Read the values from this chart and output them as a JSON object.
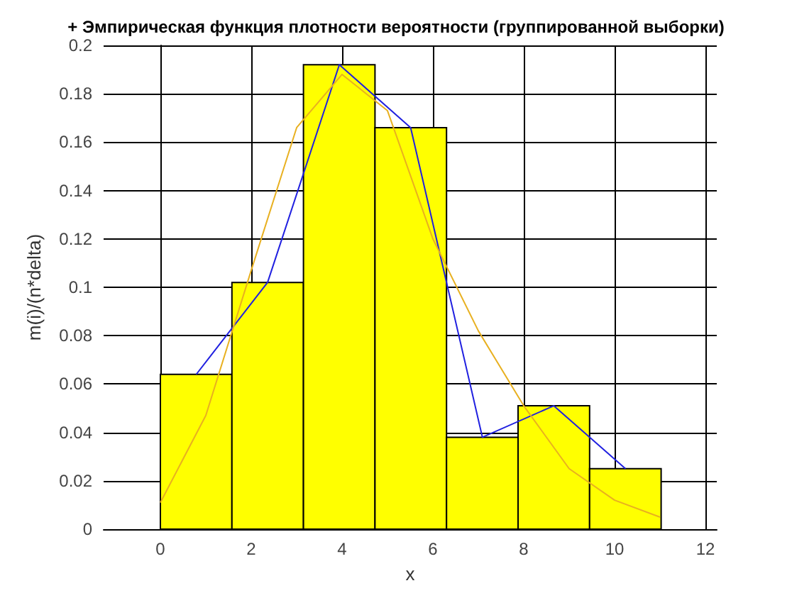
{
  "chart_data": {
    "type": "histogram",
    "title": "+ Эмпирическая функция плотности вероятности (группированной выборки)",
    "xlabel": "x",
    "ylabel": "m(i)/(n*delta)",
    "bins": [
      0,
      1.575,
      3.15,
      4.725,
      6.3,
      7.875,
      9.45,
      11.025
    ],
    "values": [
      0.064,
      0.102,
      0.192,
      0.166,
      0.038,
      0.051,
      0.025
    ],
    "color": "#ffff00",
    "series": [
      {
        "type": "line",
        "color": "#2020e0",
        "x": [
          0.79,
          2.36,
          3.94,
          5.51,
          7.09,
          8.66,
          10.24
        ],
        "values": [
          0.064,
          0.102,
          0.192,
          0.166,
          0.038,
          0.051,
          0.025
        ]
      },
      {
        "type": "line",
        "color": "#e8b020",
        "x": [
          0,
          1,
          2,
          3,
          4,
          5,
          6,
          7,
          8,
          9,
          10,
          11
        ],
        "values": [
          0.011,
          0.047,
          0.107,
          0.166,
          0.188,
          0.173,
          0.12,
          0.082,
          0.051,
          0.025,
          0.012,
          0.005
        ]
      }
    ],
    "marker": "none",
    "line_style": "solid",
    "xlim": [
      -1.25,
      12.25
    ],
    "xticks": [
      0,
      2,
      4,
      6,
      8,
      10,
      12
    ],
    "ylim": [
      0,
      0.2
    ],
    "yticks": [
      0,
      0.02,
      0.04,
      0.06,
      0.08,
      0.1,
      0.12,
      0.14,
      0.16,
      0.18,
      0.2
    ],
    "grid": true
  }
}
